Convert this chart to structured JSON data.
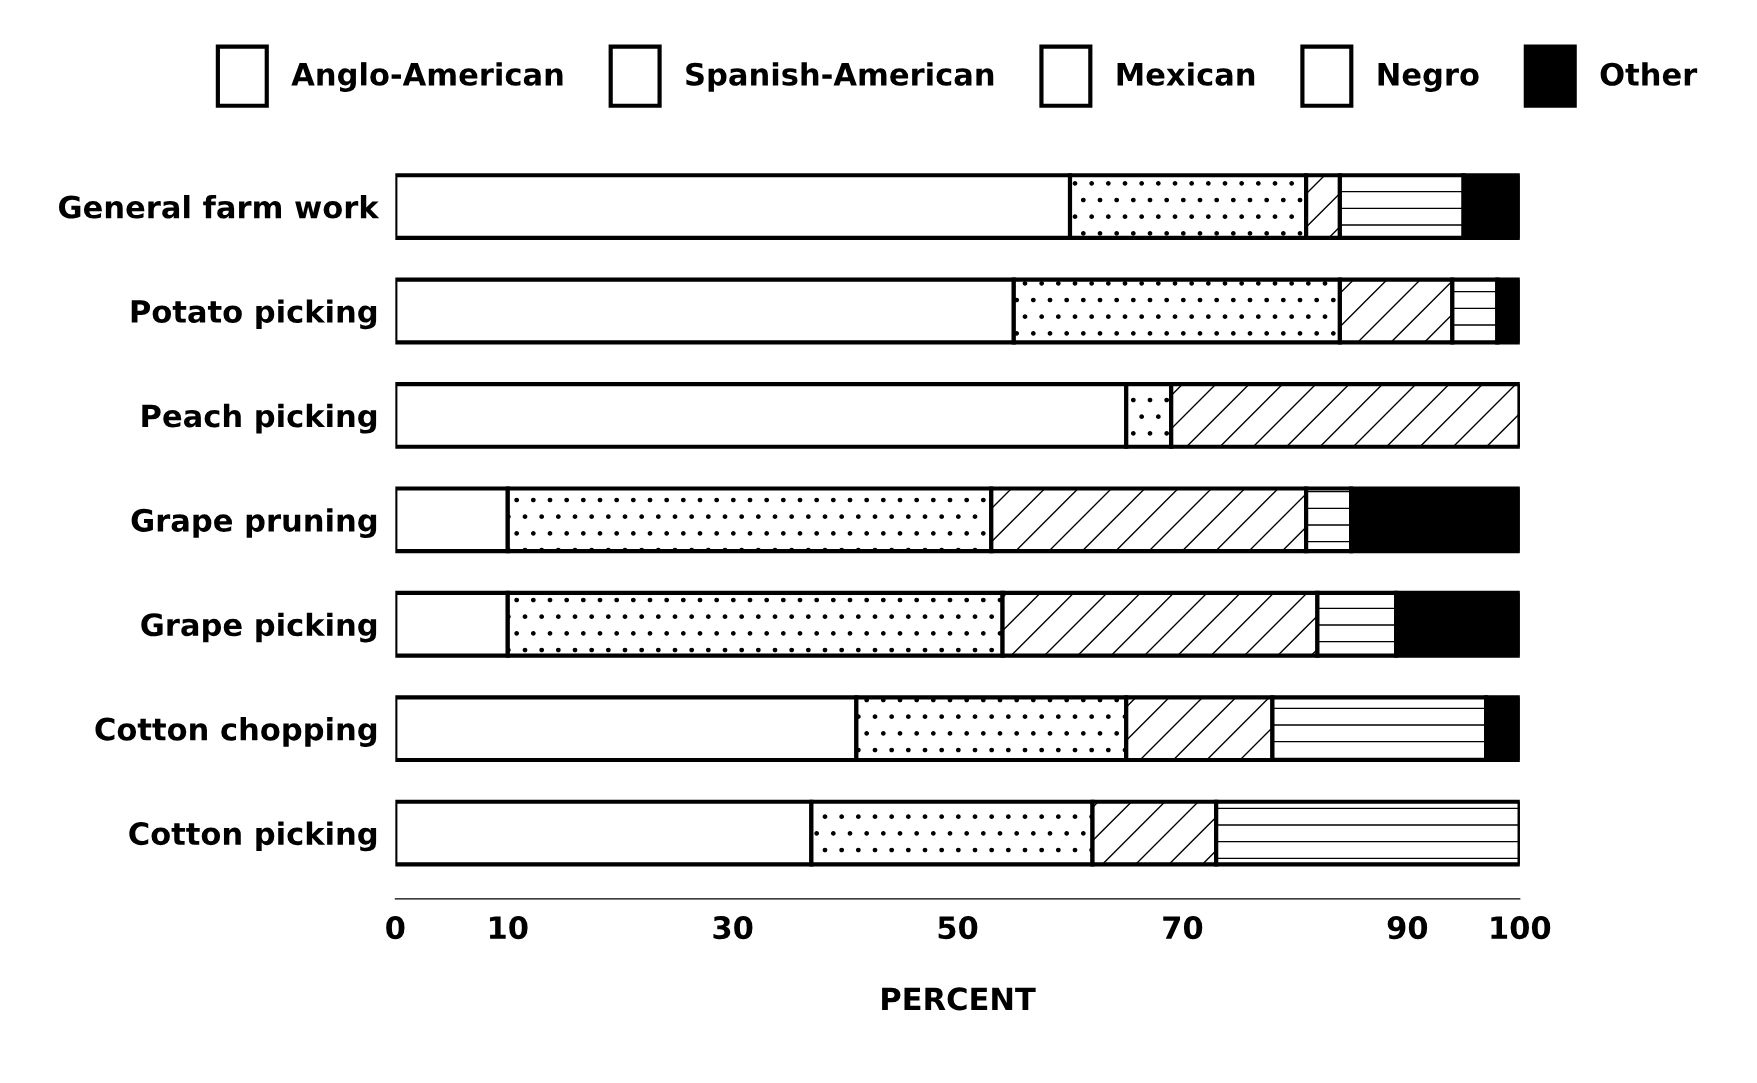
{
  "chart_data": {
    "type": "bar",
    "orientation": "horizontal",
    "stacked": true,
    "categories": [
      "General farm work",
      "Potato picking",
      "Peach picking",
      "Grape pruning",
      "Grape picking",
      "Cotton chopping",
      "Cotton picking"
    ],
    "series": [
      {
        "name": "Anglo-American",
        "color": "#ffffff",
        "values": [
          60,
          55,
          65,
          10,
          10,
          41,
          37
        ]
      },
      {
        "name": "Spanish-American",
        "color": "#ffffff",
        "values": [
          21,
          29,
          4,
          43,
          44,
          24,
          25
        ]
      },
      {
        "name": "Mexican",
        "color": "#ffffff",
        "values": [
          3,
          10,
          31,
          28,
          28,
          13,
          11
        ]
      },
      {
        "name": "Negro",
        "color": "#ffffff",
        "values": [
          11,
          4,
          0,
          4,
          7,
          19,
          27
        ]
      },
      {
        "name": "Other",
        "color": "#000000",
        "values": [
          5,
          2,
          0,
          15,
          11,
          3,
          0
        ]
      }
    ],
    "xlabel": "PERCENT",
    "xlim": [
      0,
      100
    ],
    "xticks": [
      0,
      10,
      30,
      50,
      70,
      90,
      100
    ],
    "legend": "top",
    "grid": false
  }
}
